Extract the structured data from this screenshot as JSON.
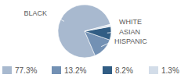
{
  "chart_data": {
    "type": "pie",
    "categories": [
      "BLACK",
      "HISPANIC",
      "ASIAN",
      "WHITE"
    ],
    "values": [
      77.3,
      13.2,
      8.2,
      1.3
    ],
    "value_labels": [
      "77.3%",
      "13.2%",
      "8.2%",
      "1.3%"
    ],
    "colors": [
      "#a8b9cf",
      "#7391b4",
      "#315d84",
      "#d3dde9"
    ]
  }
}
